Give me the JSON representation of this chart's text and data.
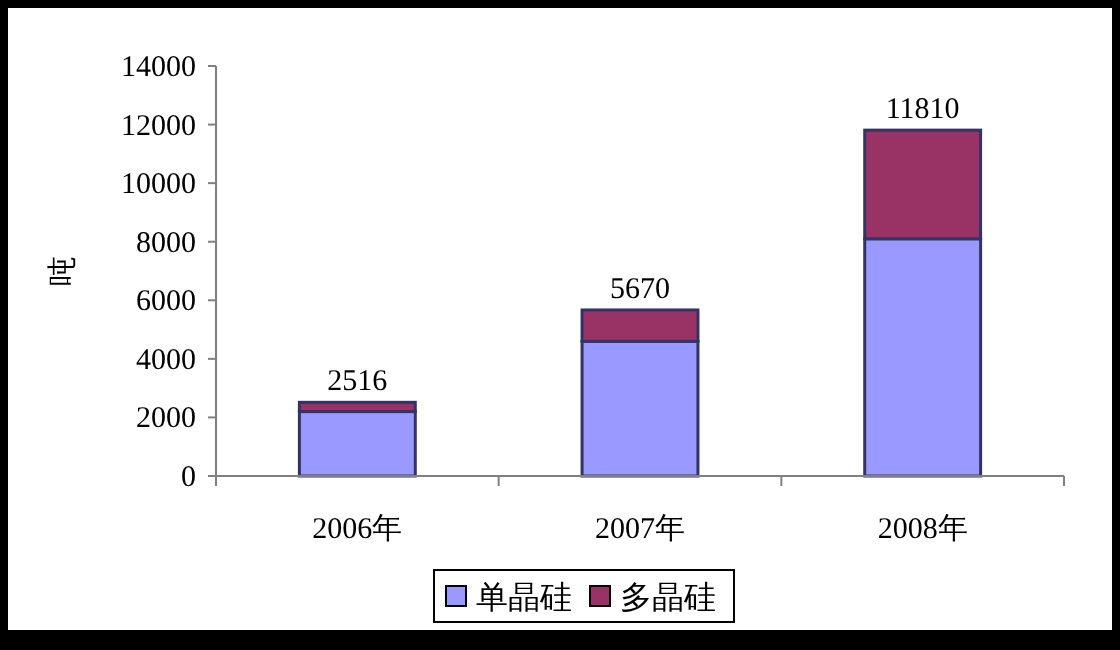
{
  "chart_data": {
    "type": "bar",
    "stacked": true,
    "ylabel": "吨",
    "categories": [
      "2006年",
      "2007年",
      "2008年"
    ],
    "series": [
      {
        "name": "单晶硅",
        "color": "#9999ff",
        "values": [
          2200,
          4600,
          8100
        ]
      },
      {
        "name": "多晶硅",
        "color": "#993366",
        "values": [
          316,
          1070,
          3710
        ]
      }
    ],
    "totals": [
      "2516",
      "5670",
      "11810"
    ],
    "ylim": [
      0,
      14000
    ],
    "yticks": [
      0,
      2000,
      4000,
      6000,
      8000,
      10000,
      12000,
      14000
    ],
    "grid": false,
    "legend": "bottom"
  }
}
